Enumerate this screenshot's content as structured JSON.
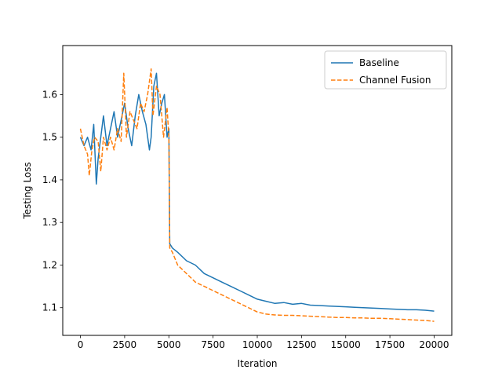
{
  "chart_data": {
    "type": "line",
    "title": "",
    "xlabel": "Iteration",
    "ylabel": "Testing Loss",
    "xlim": [
      -1000,
      21000
    ],
    "ylim": [
      1.035,
      1.715
    ],
    "xticks": [
      0,
      2500,
      5000,
      7500,
      10000,
      12500,
      15000,
      17500,
      20000
    ],
    "yticks": [
      1.1,
      1.2,
      1.3,
      1.4,
      1.5,
      1.6
    ],
    "grid": false,
    "legend_position": "top-right",
    "series": [
      {
        "name": "Baseline",
        "color": "#1f77b4",
        "dash": "solid",
        "x": [
          0,
          200,
          400,
          600,
          750,
          900,
          1000,
          1150,
          1300,
          1500,
          1700,
          1900,
          2100,
          2300,
          2500,
          2700,
          2900,
          3100,
          3300,
          3500,
          3700,
          3900,
          4000,
          4150,
          4300,
          4450,
          4600,
          4750,
          4900,
          5000,
          5050,
          5200,
          5500,
          6000,
          6500,
          7000,
          7500,
          8000,
          8500,
          9000,
          9500,
          10000,
          10500,
          11000,
          11500,
          12000,
          12500,
          13000,
          13500,
          14000,
          14500,
          15000,
          15500,
          16000,
          16500,
          17000,
          17500,
          18000,
          18500,
          19000,
          19500,
          20000
        ],
        "y": [
          1.5,
          1.48,
          1.5,
          1.47,
          1.53,
          1.39,
          1.45,
          1.5,
          1.55,
          1.48,
          1.52,
          1.56,
          1.5,
          1.54,
          1.58,
          1.52,
          1.48,
          1.55,
          1.6,
          1.56,
          1.53,
          1.47,
          1.5,
          1.62,
          1.65,
          1.55,
          1.58,
          1.6,
          1.5,
          1.52,
          1.25,
          1.24,
          1.23,
          1.21,
          1.2,
          1.18,
          1.17,
          1.16,
          1.15,
          1.14,
          1.13,
          1.12,
          1.115,
          1.11,
          1.112,
          1.108,
          1.11,
          1.106,
          1.105,
          1.104,
          1.103,
          1.102,
          1.101,
          1.1,
          1.099,
          1.098,
          1.097,
          1.096,
          1.095,
          1.095,
          1.094,
          1.092
        ]
      },
      {
        "name": "Channel Fusion",
        "color": "#ff7f0e",
        "dash": "dashed",
        "x": [
          0,
          200,
          400,
          500,
          650,
          800,
          1000,
          1150,
          1300,
          1500,
          1700,
          1900,
          2100,
          2300,
          2450,
          2600,
          2800,
          3000,
          3200,
          3400,
          3600,
          3800,
          4000,
          4100,
          4300,
          4500,
          4700,
          4900,
          5000,
          5050,
          5200,
          5500,
          6000,
          6500,
          7000,
          7500,
          8000,
          8500,
          9000,
          9500,
          10000,
          10500,
          11000,
          11500,
          12000,
          12500,
          13000,
          13500,
          14000,
          14500,
          15000,
          15500,
          16000,
          16500,
          17000,
          17500,
          18000,
          18500,
          19000,
          19500,
          20000
        ],
        "y": [
          1.52,
          1.48,
          1.46,
          1.41,
          1.47,
          1.5,
          1.49,
          1.42,
          1.5,
          1.47,
          1.5,
          1.47,
          1.52,
          1.49,
          1.65,
          1.5,
          1.56,
          1.54,
          1.52,
          1.58,
          1.56,
          1.6,
          1.66,
          1.55,
          1.62,
          1.6,
          1.5,
          1.57,
          1.5,
          1.24,
          1.23,
          1.2,
          1.18,
          1.16,
          1.15,
          1.14,
          1.13,
          1.12,
          1.11,
          1.1,
          1.09,
          1.085,
          1.083,
          1.082,
          1.082,
          1.081,
          1.08,
          1.079,
          1.078,
          1.077,
          1.077,
          1.076,
          1.076,
          1.075,
          1.075,
          1.074,
          1.073,
          1.072,
          1.071,
          1.07,
          1.068
        ]
      }
    ]
  }
}
